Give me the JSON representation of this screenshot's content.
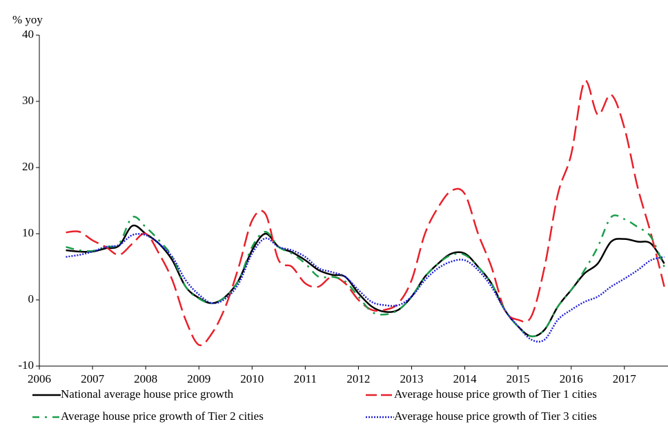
{
  "chart_data": {
    "type": "line",
    "ylabel": "% yoy",
    "x": [
      2006.5,
      2006.75,
      2007,
      2007.25,
      2007.5,
      2007.75,
      2008,
      2008.25,
      2008.5,
      2008.75,
      2009,
      2009.25,
      2009.5,
      2009.75,
      2010,
      2010.25,
      2010.5,
      2010.75,
      2011,
      2011.25,
      2011.5,
      2011.75,
      2012,
      2012.25,
      2012.5,
      2012.75,
      2013,
      2013.25,
      2013.5,
      2013.75,
      2014,
      2014.25,
      2014.5,
      2014.75,
      2015,
      2015.25,
      2015.5,
      2015.75,
      2016,
      2016.25,
      2016.5,
      2016.75,
      2017,
      2017.25,
      2017.5,
      2017.75
    ],
    "series": [
      {
        "name": "National average house price growth",
        "color": "#000000",
        "linestyle": "solid",
        "values": [
          7.5,
          7.3,
          7.3,
          7.8,
          8.2,
          11.2,
          10,
          8.5,
          6,
          2,
          0.3,
          -0.5,
          0.5,
          3,
          7.5,
          10,
          8,
          7.2,
          6,
          4.5,
          3.8,
          3.5,
          1,
          -1,
          -1.8,
          -1.5,
          0.5,
          3.5,
          5.5,
          7,
          7,
          5,
          2.5,
          -1.5,
          -4,
          -5.5,
          -4.5,
          -1,
          1.5,
          4,
          5.5,
          8.8,
          9.2,
          8.8,
          8.5,
          5.5
        ]
      },
      {
        "name": "Average house price growth of Tier 1 cities",
        "color": "#e8202a",
        "linestyle": "dashed",
        "values": [
          10.2,
          10.3,
          9,
          8,
          6.8,
          8.5,
          10,
          7,
          3,
          -3,
          -6.8,
          -5,
          -1,
          5,
          12,
          13,
          6,
          5,
          2.5,
          2,
          3.5,
          2.5,
          0,
          -1.5,
          -1.5,
          -0.5,
          3,
          10,
          14,
          16.5,
          16,
          10,
          5,
          -1.5,
          -3,
          -2.5,
          5,
          16,
          22,
          33,
          28,
          31,
          26,
          17,
          10,
          2
        ]
      },
      {
        "name": "Average house price growth of Tier 2 cities",
        "color": "#1a9e4b",
        "linestyle": "dashdot",
        "values": [
          8,
          7.5,
          7.4,
          8,
          8.5,
          12.5,
          11,
          9,
          6.5,
          2,
          0.2,
          -0.5,
          0.5,
          3,
          8,
          10.3,
          8,
          7,
          5.5,
          3.5,
          3.5,
          2.8,
          0.5,
          -1.8,
          -2.2,
          -1.5,
          0.5,
          3.5,
          5.5,
          6.8,
          6.8,
          5,
          2.5,
          -1.5,
          -4,
          -5.5,
          -4.5,
          -1,
          1.5,
          4.5,
          8,
          12.5,
          12.2,
          11,
          9.5,
          5
        ]
      },
      {
        "name": "Average house price growth of Tier 3 cities",
        "color": "#1f1fd6",
        "linestyle": "dotted",
        "values": [
          6.5,
          6.8,
          7.3,
          8,
          8.3,
          9.8,
          9.8,
          8.5,
          6.5,
          3,
          0.8,
          -0.5,
          0.2,
          2.5,
          7,
          9.3,
          8,
          7.5,
          6.5,
          4.8,
          4.2,
          3.5,
          1.5,
          -0.3,
          -0.8,
          -0.8,
          0.5,
          3,
          4.8,
          5.8,
          6,
          4.5,
          2,
          -1.5,
          -4,
          -6,
          -6,
          -3,
          -1.5,
          -0.3,
          0.5,
          2,
          3.2,
          4.5,
          6,
          6.5
        ]
      }
    ],
    "xlim": [
      2006,
      2017.82
    ],
    "xticks": [
      2006,
      2007,
      2008,
      2009,
      2010,
      2011,
      2012,
      2013,
      2014,
      2015,
      2016,
      2017
    ],
    "ylim": [
      -10,
      40
    ],
    "yticks": [
      -10,
      0,
      10,
      20,
      30,
      40
    ]
  }
}
